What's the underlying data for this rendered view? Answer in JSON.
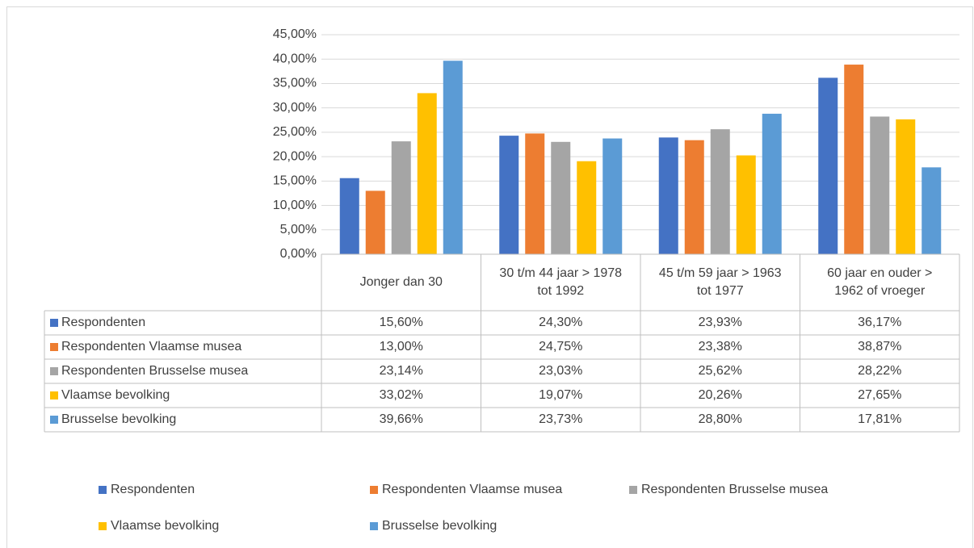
{
  "chart_data": {
    "type": "bar",
    "categories": [
      "Jonger dan 30",
      "30 t/m 44 jaar > 1978 tot 1992",
      "45 t/m 59 jaar > 1963 tot 1977",
      "60 jaar en ouder > 1962 of vroeger"
    ],
    "series": [
      {
        "name": "Respondenten",
        "color": "#4472c4",
        "values": [
          15.6,
          24.3,
          23.93,
          36.17
        ],
        "value_labels": [
          "15,60%",
          "24,30%",
          "23,93%",
          "36,17%"
        ]
      },
      {
        "name": "Respondenten Vlaamse musea",
        "color": "#ed7d31",
        "values": [
          13.0,
          24.75,
          23.38,
          38.87
        ],
        "value_labels": [
          "13,00%",
          "24,75%",
          "23,38%",
          "38,87%"
        ]
      },
      {
        "name": "Respondenten Brusselse musea",
        "color": "#a5a5a5",
        "values": [
          23.14,
          23.03,
          25.62,
          28.22
        ],
        "value_labels": [
          "23,14%",
          "23,03%",
          "25,62%",
          "28,22%"
        ]
      },
      {
        "name": "Vlaamse bevolking",
        "color": "#ffc000",
        "values": [
          33.02,
          19.07,
          20.26,
          27.65
        ],
        "value_labels": [
          "33,02%",
          "19,07%",
          "20,26%",
          "27,65%"
        ]
      },
      {
        "name": "Brusselse bevolking",
        "color": "#5b9bd5",
        "values": [
          39.66,
          23.73,
          28.8,
          17.81
        ],
        "value_labels": [
          "39,66%",
          "23,73%",
          "28,80%",
          "17,81%"
        ]
      }
    ],
    "ylim": [
      0,
      45
    ],
    "yticks": [
      {
        "value": 0,
        "label": "0,00%"
      },
      {
        "value": 5,
        "label": "5,00%"
      },
      {
        "value": 10,
        "label": "10,00%"
      },
      {
        "value": 15,
        "label": "15,00%"
      },
      {
        "value": 20,
        "label": "20,00%"
      },
      {
        "value": 25,
        "label": "25,00%"
      },
      {
        "value": 30,
        "label": "30,00%"
      },
      {
        "value": 35,
        "label": "35,00%"
      },
      {
        "value": 40,
        "label": "40,00%"
      },
      {
        "value": 45,
        "label": "45,00%"
      }
    ],
    "grid": true,
    "legend": "bottom",
    "data_table": true
  }
}
